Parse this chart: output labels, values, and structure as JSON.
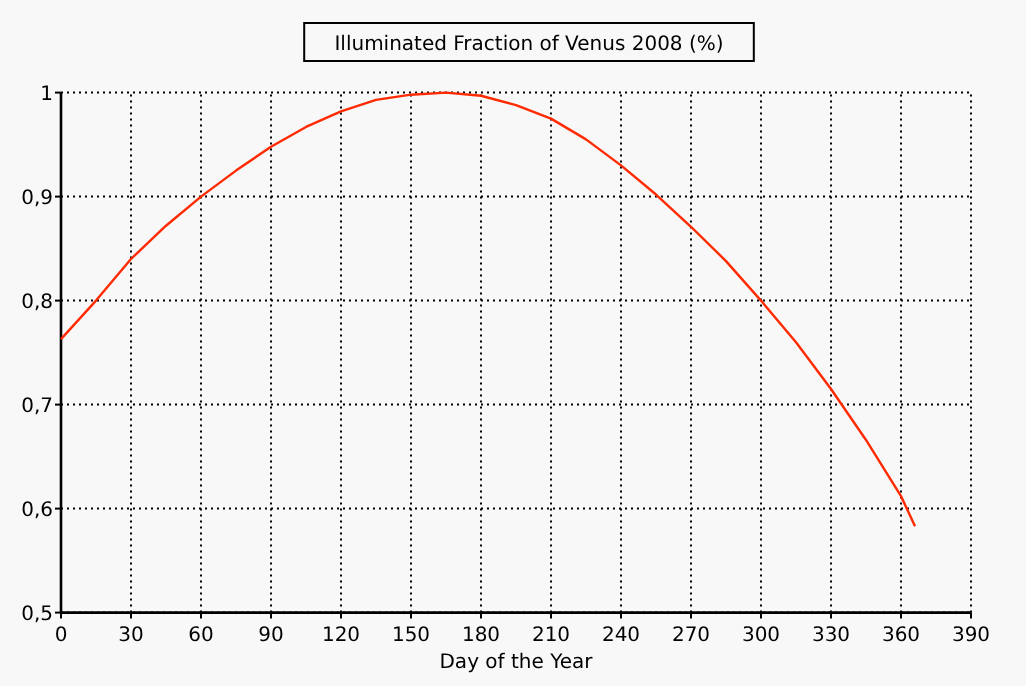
{
  "chart_data": {
    "type": "line",
    "title": "Illuminated Fraction of Venus 2008 (%)",
    "xlabel": "Day of the Year",
    "x": [
      0,
      15,
      30,
      45,
      60,
      75,
      90,
      105,
      120,
      135,
      150,
      165,
      180,
      195,
      210,
      225,
      240,
      255,
      270,
      285,
      300,
      315,
      330,
      345,
      360,
      366
    ],
    "series": [
      {
        "color": "#ff2a00",
        "values": [
          0.763,
          0.8,
          0.84,
          0.872,
          0.9,
          0.925,
          0.948,
          0.967,
          0.982,
          0.993,
          0.998,
          1.0,
          0.997,
          0.988,
          0.975,
          0.955,
          0.93,
          0.902,
          0.871,
          0.838,
          0.8,
          0.76,
          0.715,
          0.666,
          0.612,
          0.583
        ]
      }
    ],
    "xlim": [
      0,
      390
    ],
    "xticks": [
      0,
      30,
      60,
      90,
      120,
      150,
      180,
      210,
      240,
      270,
      300,
      330,
      360,
      390
    ],
    "ylim": [
      0.5,
      1
    ],
    "yticks": [
      {
        "value": 0.5,
        "label": "0,5"
      },
      {
        "value": 0.6,
        "label": "0,6"
      },
      {
        "value": 0.7,
        "label": "0,7"
      },
      {
        "value": 0.8,
        "label": "0,8"
      },
      {
        "value": 0.9,
        "label": "0,9"
      },
      1
    ],
    "grid": true,
    "marker": "none",
    "line_style": "solid"
  }
}
